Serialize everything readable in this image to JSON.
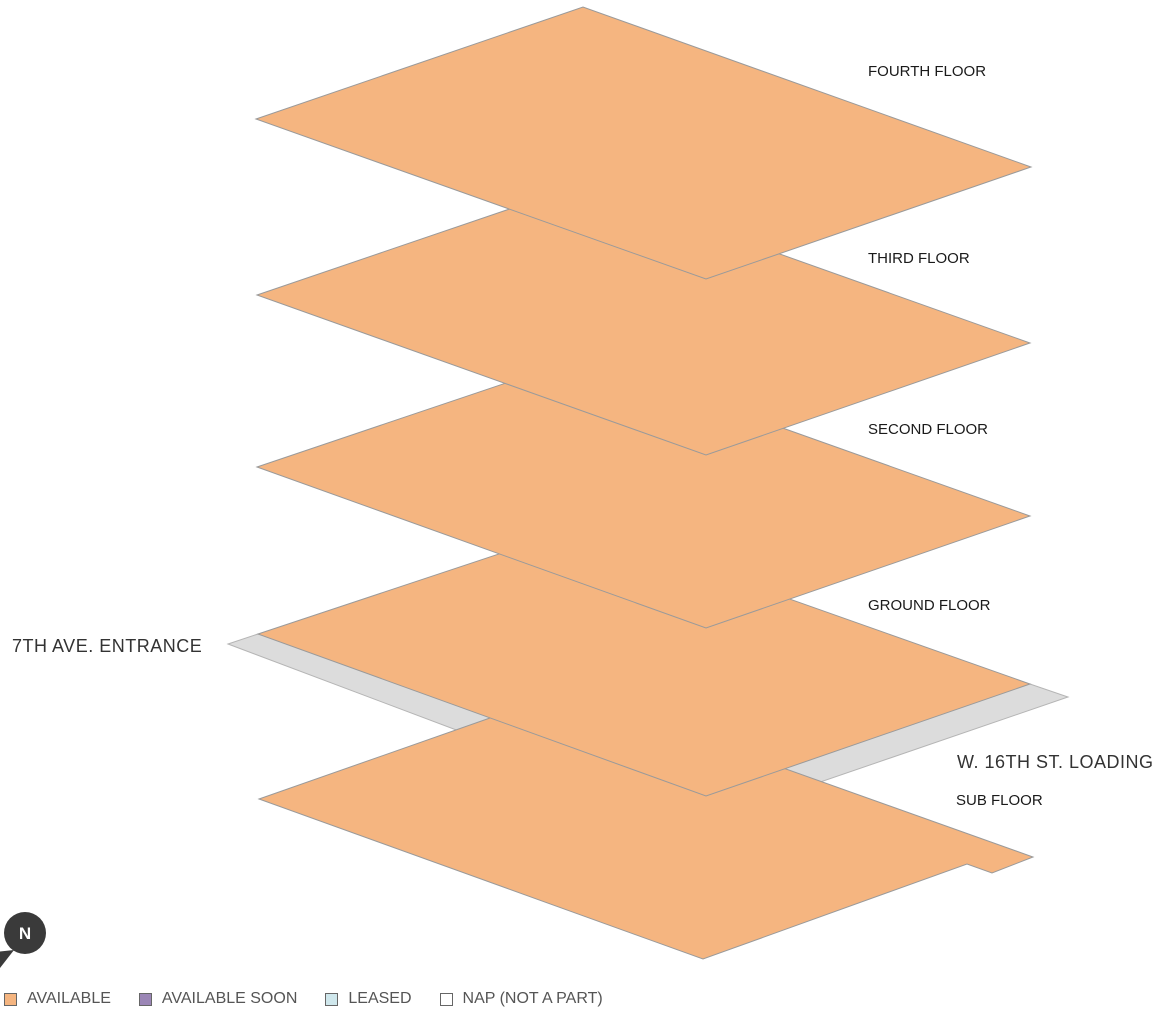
{
  "floors": [
    {
      "id": "fourth",
      "label": "FOURTH FLOOR",
      "status": "available"
    },
    {
      "id": "third",
      "label": "THIRD FLOOR",
      "status": "available"
    },
    {
      "id": "second",
      "label": "SECOND FLOOR",
      "status": "available"
    },
    {
      "id": "ground",
      "label": "GROUND FLOOR",
      "status": "available"
    },
    {
      "id": "sub",
      "label": "SUB FLOOR",
      "status": "available"
    }
  ],
  "streets": {
    "entrance": "7TH AVE. ENTRANCE",
    "loading": "W. 16TH ST. LOADING"
  },
  "compass": {
    "letter": "N",
    "icon": "north-arrow-icon"
  },
  "legend": {
    "items": [
      {
        "label": "AVAILABLE",
        "color": "#f5b580"
      },
      {
        "label": "AVAILABLE SOON",
        "color": "#9b86b6"
      },
      {
        "label": "LEASED",
        "color": "#cfe7ec"
      },
      {
        "label": "NAP (NOT A PART)",
        "color": "#ffffff"
      }
    ]
  },
  "colors": {
    "available": "#f5b580",
    "sidewalk": "#dcdcdc",
    "outline": "#9a9a9a",
    "compass": "#3a3a3a"
  }
}
